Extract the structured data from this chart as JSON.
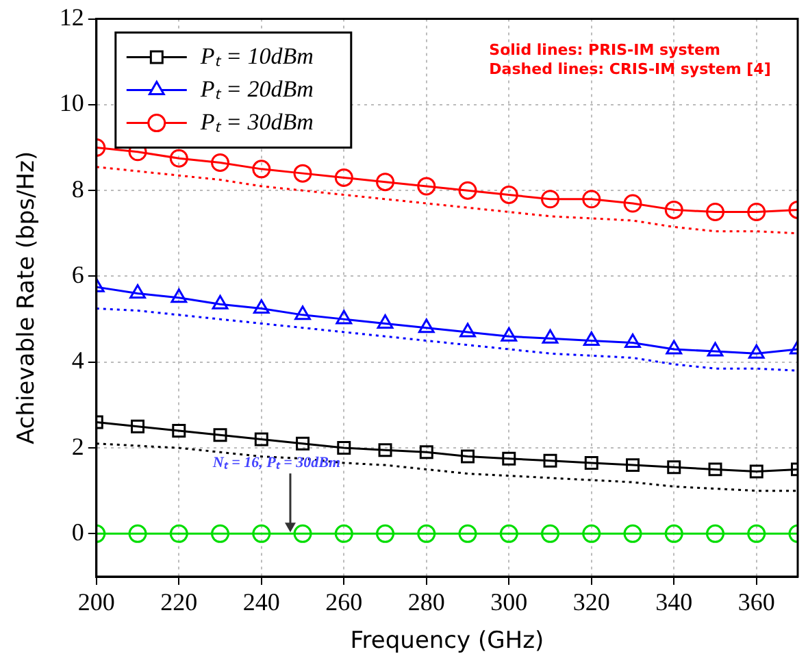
{
  "chart_data": {
    "type": "line",
    "xlabel": "Frequency (GHz)",
    "ylabel": "Achievable Rate (bps/Hz)",
    "x": [
      200,
      210,
      220,
      230,
      240,
      250,
      260,
      270,
      280,
      290,
      300,
      310,
      320,
      330,
      340,
      350,
      360,
      370
    ],
    "xlim": [
      200,
      370
    ],
    "xticks": [
      200,
      220,
      240,
      260,
      280,
      300,
      320,
      340,
      360
    ],
    "ylim": [
      -1,
      12
    ],
    "yticks": [
      0,
      2,
      4,
      6,
      8,
      10,
      12
    ],
    "grid": true,
    "legend": "top left",
    "series": [
      {
        "name": "Pₜ = 10dBm",
        "color": "#000000",
        "marker": "square",
        "line_style": "solid",
        "values": [
          2.6,
          2.5,
          2.4,
          2.3,
          2.2,
          2.1,
          2.0,
          1.95,
          1.9,
          1.8,
          1.75,
          1.7,
          1.65,
          1.6,
          1.55,
          1.5,
          1.45,
          1.5
        ]
      },
      {
        "name": "Pₜ = 20dBm",
        "color": "#0000ff",
        "marker": "triangle",
        "line_style": "solid",
        "values": [
          5.75,
          5.6,
          5.5,
          5.35,
          5.25,
          5.1,
          5.0,
          4.9,
          4.8,
          4.7,
          4.6,
          4.55,
          4.5,
          4.45,
          4.3,
          4.25,
          4.2,
          4.3
        ]
      },
      {
        "name": "Pₜ = 30dBm",
        "color": "#ff0000",
        "marker": "circle",
        "line_style": "solid",
        "values": [
          9.0,
          8.9,
          8.75,
          8.65,
          8.5,
          8.4,
          8.3,
          8.2,
          8.1,
          8.0,
          7.9,
          7.8,
          7.8,
          7.7,
          7.55,
          7.5,
          7.5,
          7.55
        ]
      },
      {
        "color": "#000000",
        "marker": "none",
        "line_style": "dotted",
        "values": [
          2.1,
          2.05,
          2.0,
          1.9,
          1.8,
          1.75,
          1.65,
          1.6,
          1.5,
          1.4,
          1.35,
          1.3,
          1.25,
          1.2,
          1.1,
          1.05,
          1.0,
          1.0
        ]
      },
      {
        "color": "#0000ff",
        "marker": "none",
        "line_style": "dotted",
        "values": [
          5.25,
          5.2,
          5.1,
          5.0,
          4.9,
          4.8,
          4.7,
          4.6,
          4.5,
          4.4,
          4.3,
          4.2,
          4.15,
          4.1,
          3.95,
          3.85,
          3.85,
          3.8
        ]
      },
      {
        "color": "#ff0000",
        "marker": "none",
        "line_style": "dotted",
        "values": [
          8.55,
          8.45,
          8.35,
          8.25,
          8.1,
          8.0,
          7.9,
          7.8,
          7.7,
          7.6,
          7.5,
          7.4,
          7.35,
          7.3,
          7.15,
          7.05,
          7.05,
          7.0
        ]
      },
      {
        "color": "#00dd00",
        "marker": "circle",
        "line_style": "solid",
        "values": [
          0,
          0,
          0,
          0,
          0,
          0,
          0,
          0,
          0,
          0,
          0,
          0,
          0,
          0,
          0,
          0,
          0,
          0
        ]
      }
    ],
    "annotations": [
      "Solid lines: PRIS-IM system",
      "Dashed lines: CRIS-IM system [4]",
      {
        "text": "Nₜ = 16, Pₜ = 30dBm",
        "x": 247,
        "y": 0
      }
    ]
  }
}
